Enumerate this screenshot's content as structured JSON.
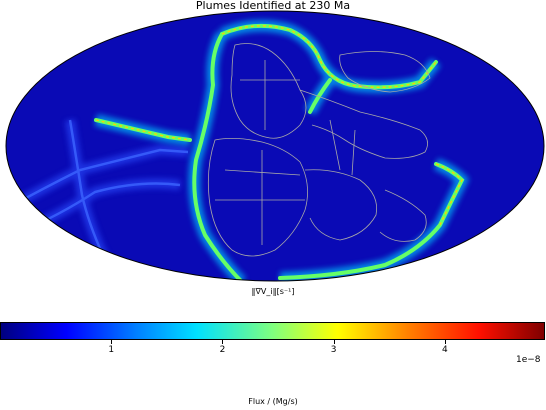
{
  "chart_data": {
    "type": "heatmap",
    "projection": "mollweide",
    "title": "Plumes Identified at 230 Ma",
    "map_label": "‖∇V_i‖[s⁻¹]",
    "colormap": "jet",
    "colorbar": {
      "label": "Flux / (Mg/s)",
      "ticks": [
        1,
        2,
        3,
        4
      ],
      "tick_labels": [
        "1",
        "2",
        "3",
        "4"
      ],
      "range": [
        0,
        4.9
      ],
      "scale_label": "1e−8"
    },
    "features": [
      {
        "name": "eastern plate boundary arc",
        "intensity": 0.55
      },
      {
        "name": "northern ridge",
        "intensity": 0.5
      },
      {
        "name": "north-eastern trench",
        "intensity": 0.6
      },
      {
        "name": "western ridge segment",
        "intensity": 0.45
      },
      {
        "name": "southern boundary",
        "intensity": 0.4
      },
      {
        "name": "faint western ridges",
        "intensity": 0.12
      }
    ]
  },
  "colors": {
    "background": "#0a0ab5",
    "edge": "#000000",
    "coastline": "#a8a8a8"
  }
}
